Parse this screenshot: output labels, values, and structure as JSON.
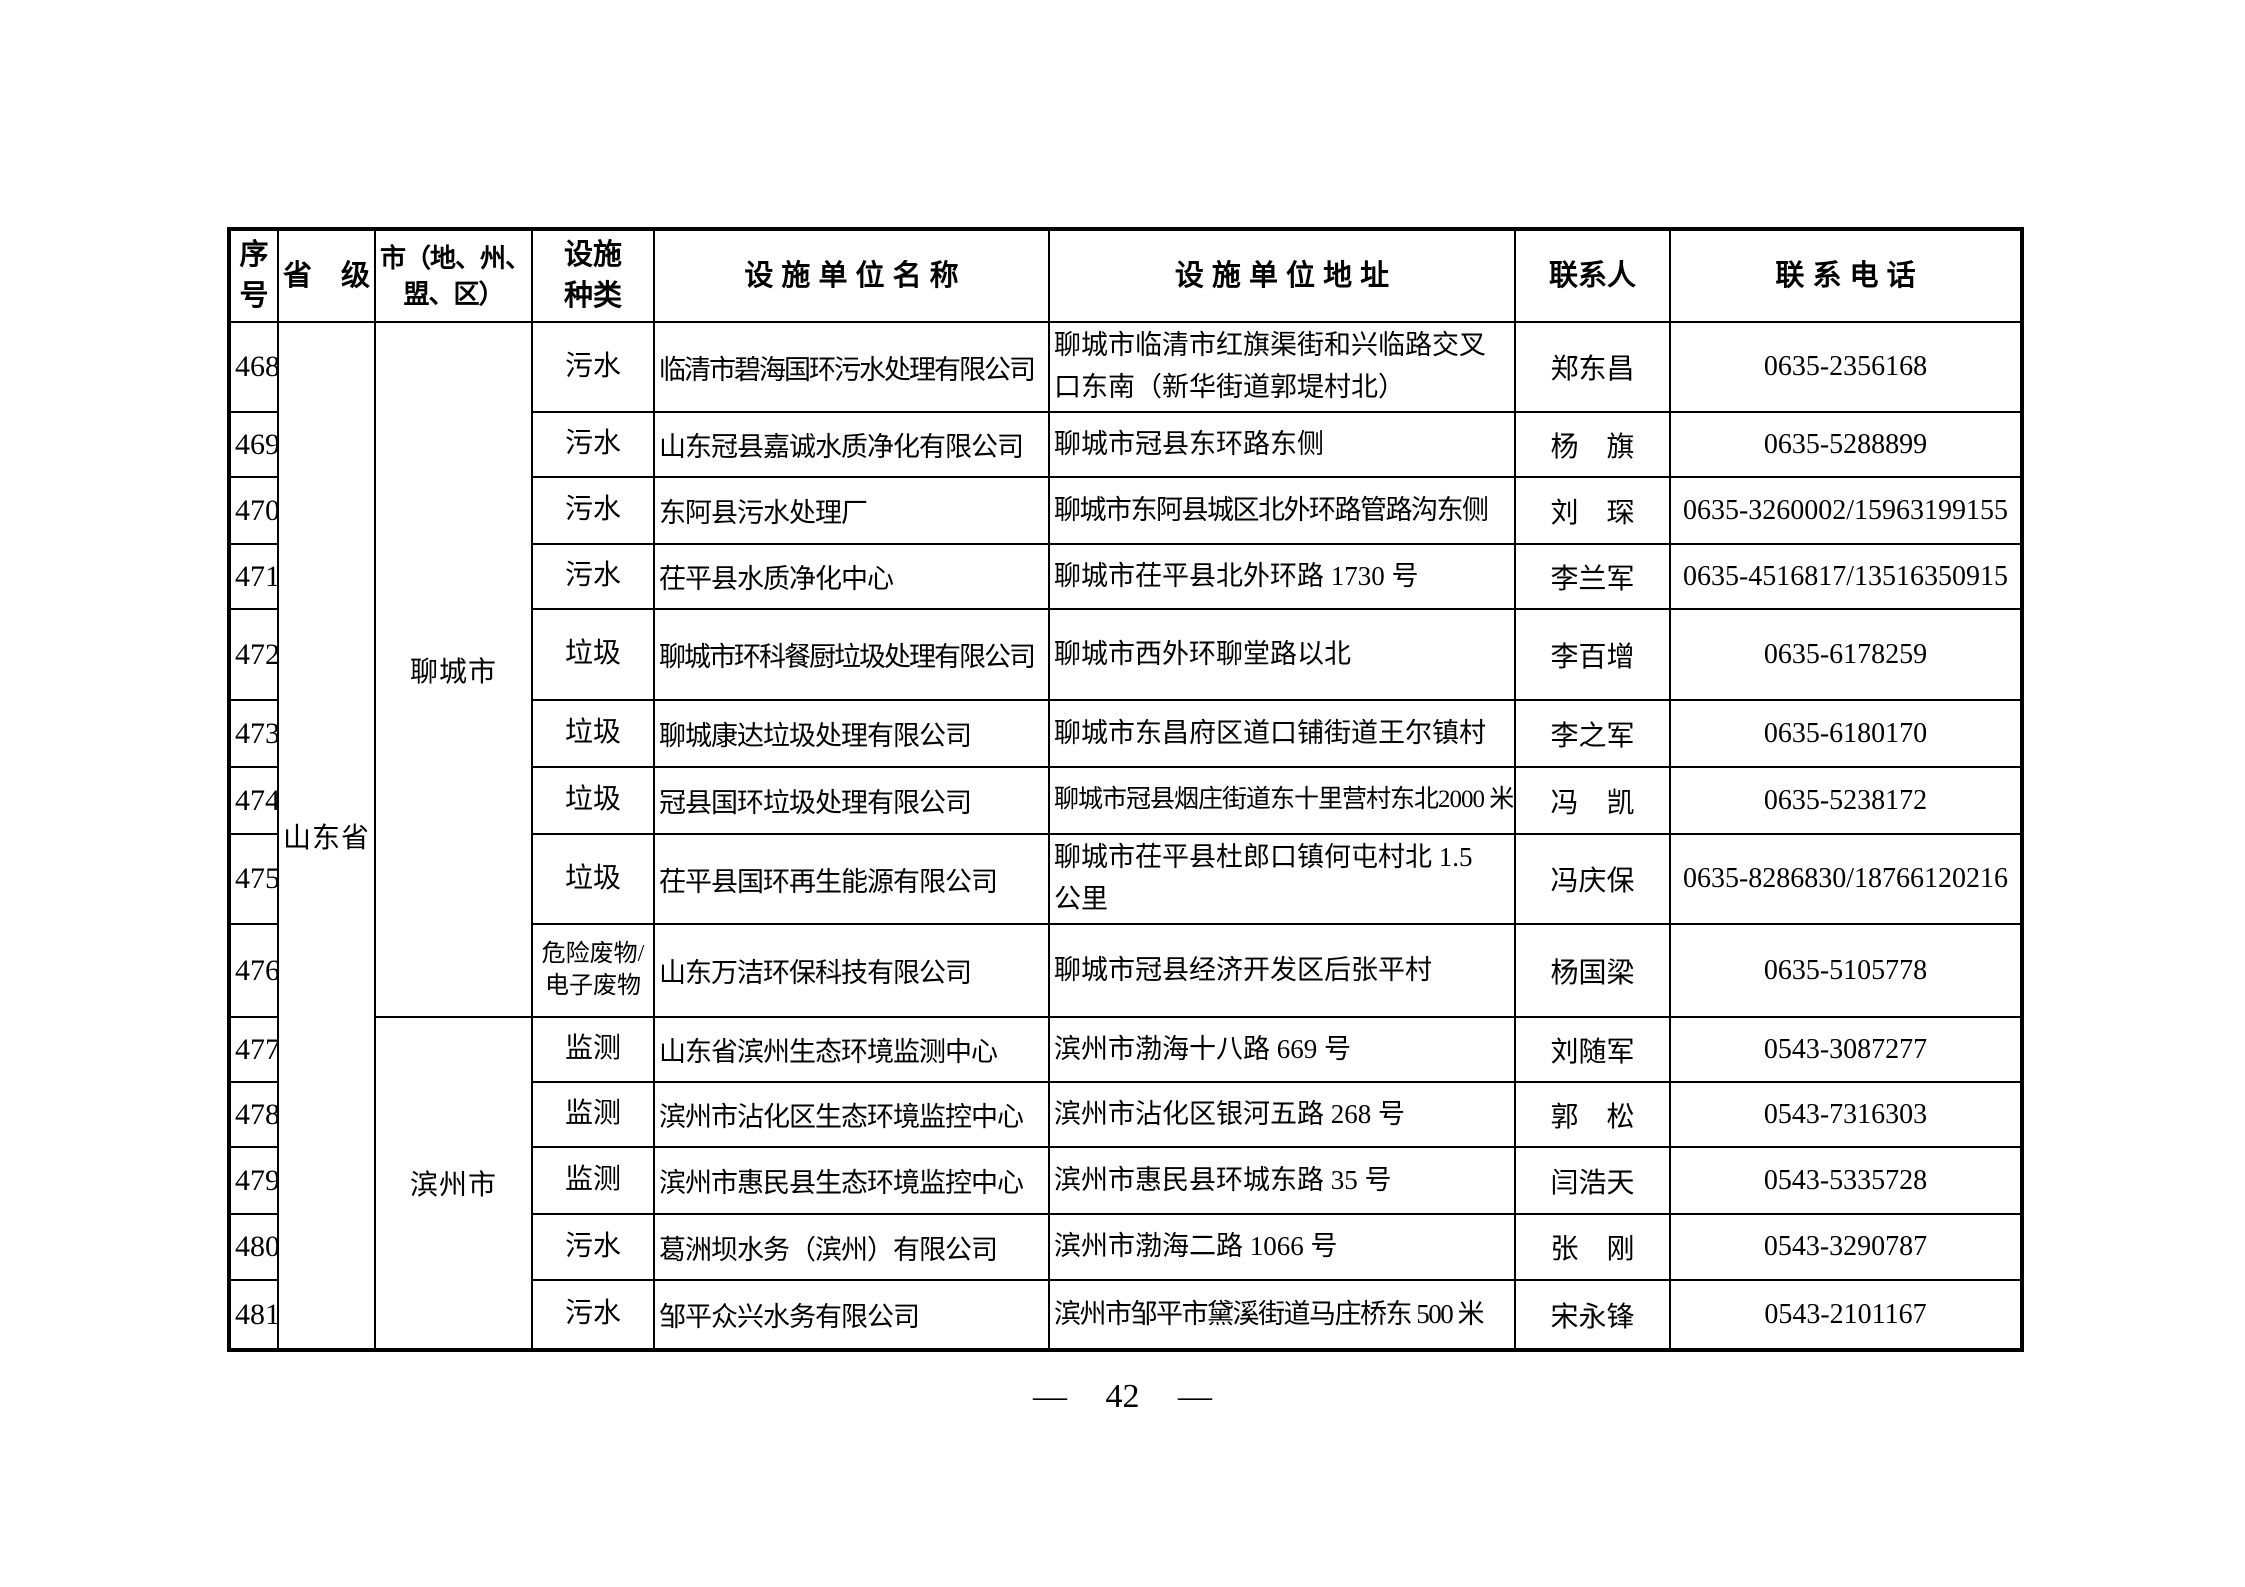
{
  "table": {
    "headers": [
      "序\n号",
      "省　级",
      "市（地、州、\n盟、区）",
      "设施\n种类",
      "设 施 单 位 名 称",
      "设 施 单 位 地 址",
      "联系人",
      "联 系 电 话"
    ],
    "province": "山东省",
    "city_groups": [
      {
        "city": "聊城市",
        "start_index": 0,
        "rowspan": 9
      },
      {
        "city": "滨州市",
        "start_index": 9,
        "rowspan": 5
      }
    ],
    "rows": [
      {
        "no": "468",
        "type": "污水",
        "name": "临清市碧海国环污水处理有限公司",
        "address": "聊城市临清市红旗渠街和兴临路交叉\n口东南（新华街道郭堤村北）",
        "contact": "郑东昌",
        "phone": "0635-2356168"
      },
      {
        "no": "469",
        "type": "污水",
        "name": "山东冠县嘉诚水质净化有限公司",
        "address": "聊城市冠县东环路东侧",
        "contact": "杨　旗",
        "phone": "0635-5288899"
      },
      {
        "no": "470",
        "type": "污水",
        "name": "东阿县污水处理厂",
        "address": "聊城市东阿县城区北外环路管路沟东侧",
        "contact": "刘　琛",
        "phone": "0635-3260002/15963199155"
      },
      {
        "no": "471",
        "type": "污水",
        "name": "茌平县水质净化中心",
        "address": "聊城市茌平县北外环路 1730 号",
        "contact": "李兰军",
        "phone": "0635-4516817/13516350915"
      },
      {
        "no": "472",
        "type": "垃圾",
        "name": "聊城市环科餐厨垃圾处理有限公司",
        "address": "聊城市西外环聊堂路以北",
        "contact": "李百增",
        "phone": "0635-6178259"
      },
      {
        "no": "473",
        "type": "垃圾",
        "name": "聊城康达垃圾处理有限公司",
        "address": "聊城市东昌府区道口铺街道王尔镇村",
        "contact": "李之军",
        "phone": "0635-6180170"
      },
      {
        "no": "474",
        "type": "垃圾",
        "name": "冠县国环垃圾处理有限公司",
        "address": "聊城市冠县烟庄街道东十里营村东北2000 米",
        "contact": "冯　凯",
        "phone": "0635-5238172"
      },
      {
        "no": "475",
        "type": "垃圾",
        "name": "茌平县国环再生能源有限公司",
        "address": "聊城市茌平县杜郎口镇何屯村北 1.5\n公里",
        "contact": "冯庆保",
        "phone": "0635-8286830/18766120216"
      },
      {
        "no": "476",
        "type": "危险废物/\n电子废物",
        "name": "山东万洁环保科技有限公司",
        "address": "聊城市冠县经济开发区后张平村",
        "contact": "杨国梁",
        "phone": "0635-5105778"
      },
      {
        "no": "477",
        "type": "监测",
        "name": "山东省滨州生态环境监测中心",
        "address": "滨州市渤海十八路 669 号",
        "contact": "刘随军",
        "phone": "0543-3087277"
      },
      {
        "no": "478",
        "type": "监测",
        "name": "滨州市沾化区生态环境监控中心",
        "address": "滨州市沾化区银河五路 268 号",
        "contact": "郭　松",
        "phone": "0543-7316303"
      },
      {
        "no": "479",
        "type": "监测",
        "name": "滨州市惠民县生态环境监控中心",
        "address": "滨州市惠民县环城东路 35 号",
        "contact": "闫浩天",
        "phone": "0543-5335728"
      },
      {
        "no": "480",
        "type": "污水",
        "name": "葛洲坝水务（滨州）有限公司",
        "address": "滨州市渤海二路 1066 号",
        "contact": "张　刚",
        "phone": "0543-3290787"
      },
      {
        "no": "481",
        "type": "污水",
        "name": "邹平众兴水务有限公司",
        "address": "滨州市邹平市黛溪街道马庄桥东 500 米",
        "contact": "宋永锋",
        "phone": "0543-2101167"
      }
    ]
  },
  "footer": {
    "dash": "—",
    "page_number": "42"
  }
}
